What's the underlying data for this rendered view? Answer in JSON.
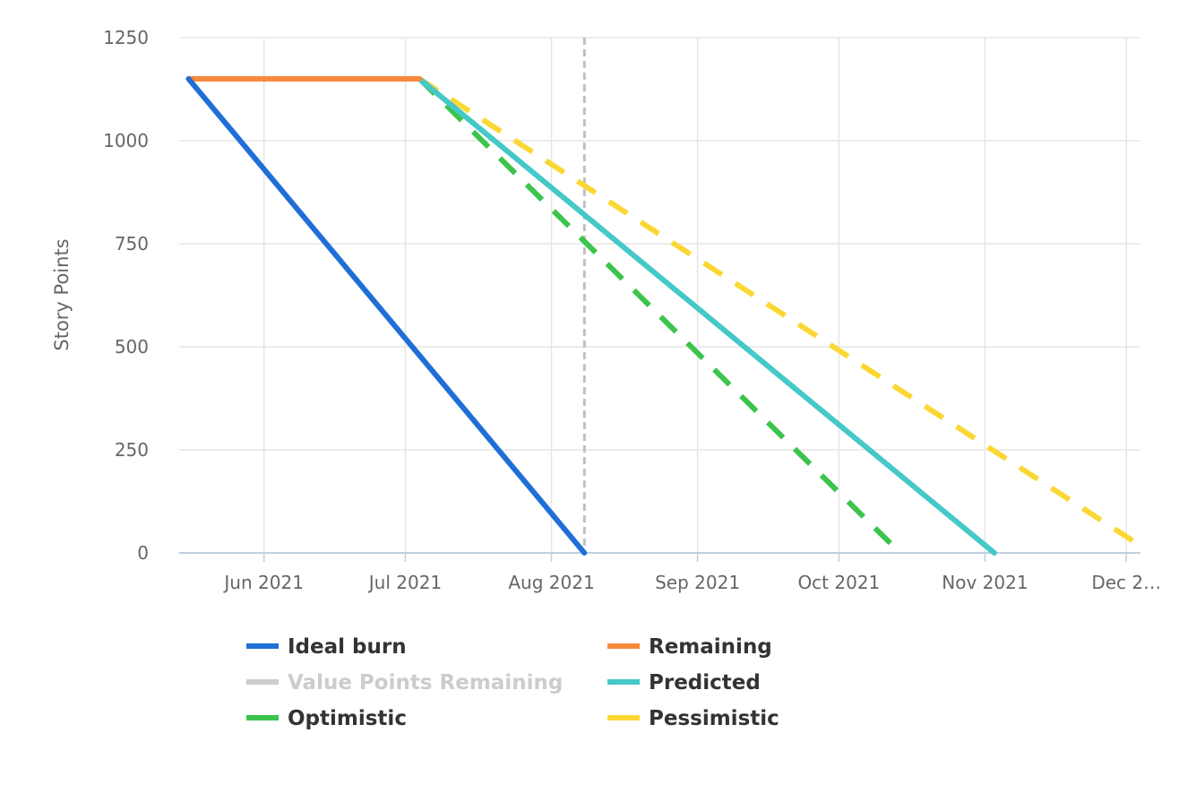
{
  "chart_data": {
    "type": "line",
    "ylabel": "Story Points",
    "xlabel": "",
    "x_axis_type": "date",
    "xlim": [
      "2021-05-14",
      "2021-12-04"
    ],
    "ylim": [
      0,
      1250
    ],
    "y_ticks": [
      0,
      250,
      500,
      750,
      1000,
      1250
    ],
    "x_ticks": [
      {
        "date": "2021-06-01",
        "label": "Jun 2021"
      },
      {
        "date": "2021-07-01",
        "label": "Jul 2021"
      },
      {
        "date": "2021-08-01",
        "label": "Aug 2021"
      },
      {
        "date": "2021-09-01",
        "label": "Sep 2021"
      },
      {
        "date": "2021-10-01",
        "label": "Oct 2021"
      },
      {
        "date": "2021-11-01",
        "label": "Nov 2021"
      },
      {
        "date": "2021-12-01",
        "label": "Dec 2…"
      }
    ],
    "grid": true,
    "legend_position": "bottom",
    "series": [
      {
        "name": "Ideal burn",
        "color": "#1f6fd6",
        "dash": "solid",
        "visible": true,
        "points": [
          [
            "2021-05-16",
            1150
          ],
          [
            "2021-08-08",
            0
          ]
        ]
      },
      {
        "name": "Remaining",
        "color": "#f7893b",
        "dash": "solid",
        "visible": true,
        "points": [
          [
            "2021-05-16",
            1150
          ],
          [
            "2021-07-04",
            1150
          ]
        ]
      },
      {
        "name": "Value Points Remaining",
        "color": "#c8c8c8",
        "dash": "solid",
        "visible": false,
        "points": []
      },
      {
        "name": "Predicted",
        "color": "#45c8c8",
        "dash": "solid",
        "visible": true,
        "points": [
          [
            "2021-07-04",
            1150
          ],
          [
            "2021-11-03",
            0
          ]
        ]
      },
      {
        "name": "Optimistic",
        "color": "#3cc44c",
        "dash": "dash",
        "visible": true,
        "points": [
          [
            "2021-07-04",
            1150
          ],
          [
            "2021-10-14",
            0
          ]
        ]
      },
      {
        "name": "Pessimistic",
        "color": "#fbd733",
        "dash": "dash",
        "visible": true,
        "points": [
          [
            "2021-07-04",
            1150
          ],
          [
            "2021-12-03",
            25
          ]
        ]
      }
    ],
    "plot_lines": [
      {
        "date": "2021-08-08",
        "color": "#c0c0c0",
        "dash": "dash"
      }
    ]
  }
}
